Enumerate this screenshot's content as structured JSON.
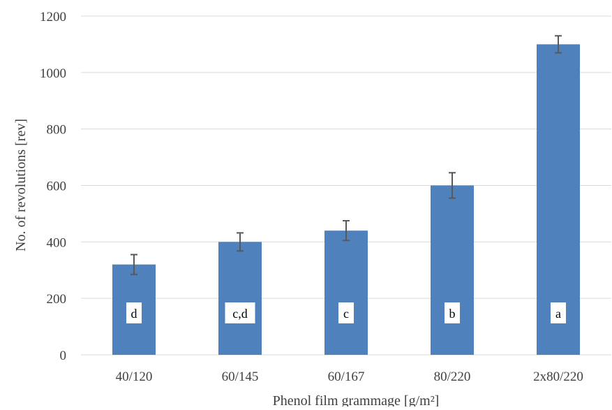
{
  "chart_data": {
    "type": "bar",
    "title": "",
    "xlabel": "Phenol film grammage [g/m²]",
    "ylabel": "No. of revolutions [rev]",
    "categories": [
      "40/120",
      "60/145",
      "60/167",
      "80/220",
      "2x80/220"
    ],
    "series": [
      {
        "values": [
          320,
          400,
          440,
          600,
          1100
        ],
        "errors": [
          35,
          32,
          35,
          45,
          30
        ],
        "significance_labels": [
          "d",
          "c,d",
          "c",
          "b",
          "a"
        ],
        "color": "#4f81bd"
      }
    ],
    "ylim": [
      0,
      1200
    ],
    "yticks": [
      0,
      200,
      400,
      600,
      800,
      1000,
      1200
    ],
    "grid": true,
    "gridline_color": "#d9d9d9",
    "errorbar_color": "#595959"
  }
}
